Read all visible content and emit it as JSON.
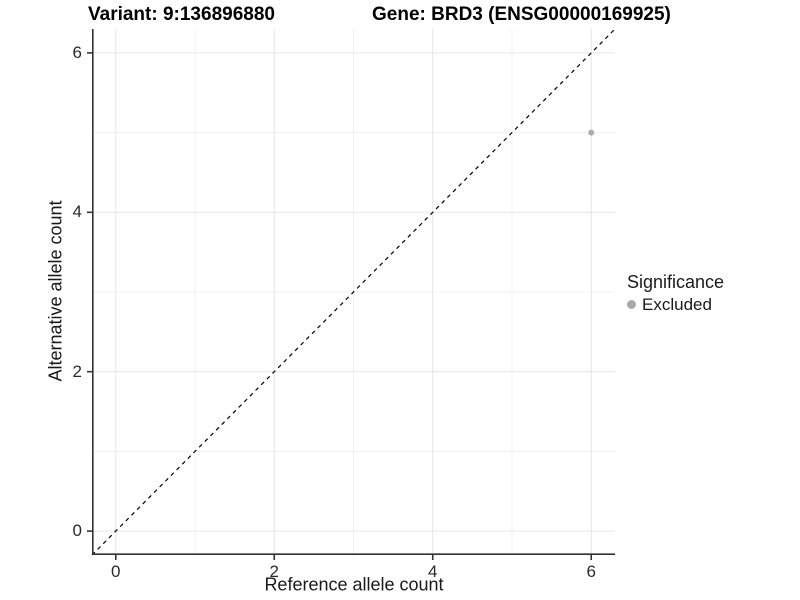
{
  "chart_data": {
    "type": "scatter",
    "title_left": "Variant: 9:136896880",
    "title_right": "Gene: BRD3 (ENSG00000169925)",
    "xlabel": "Reference allele count",
    "ylabel": "Alternative allele count",
    "xlim": [
      -0.3,
      6.3
    ],
    "ylim": [
      -0.3,
      6.3
    ],
    "x_major_ticks": [
      0,
      2,
      4,
      6
    ],
    "y_major_ticks": [
      0,
      2,
      4,
      6
    ],
    "x_minor_gridlines": [
      1,
      3,
      5
    ],
    "y_minor_gridlines": [
      1,
      3,
      5
    ],
    "grid": "major+minor",
    "reference_line": {
      "type": "identity y=x",
      "style": "dashed",
      "color": "#000000"
    },
    "series": [
      {
        "name": "Excluded",
        "color": "#adadad",
        "points": [
          {
            "x": 6,
            "y": 5
          }
        ]
      }
    ],
    "legend": {
      "title": "Significance",
      "position": "right",
      "items": [
        {
          "label": "Excluded",
          "color": "#a9a9a9"
        }
      ]
    },
    "colors": {
      "background": "#ffffff",
      "grid_major": "#e5e5e5",
      "grid_minor": "#f1f1f1",
      "axis_line": "#333333",
      "tick_mark": "#333333",
      "tick_label": "#2b2b2b",
      "title": "#000000"
    }
  }
}
